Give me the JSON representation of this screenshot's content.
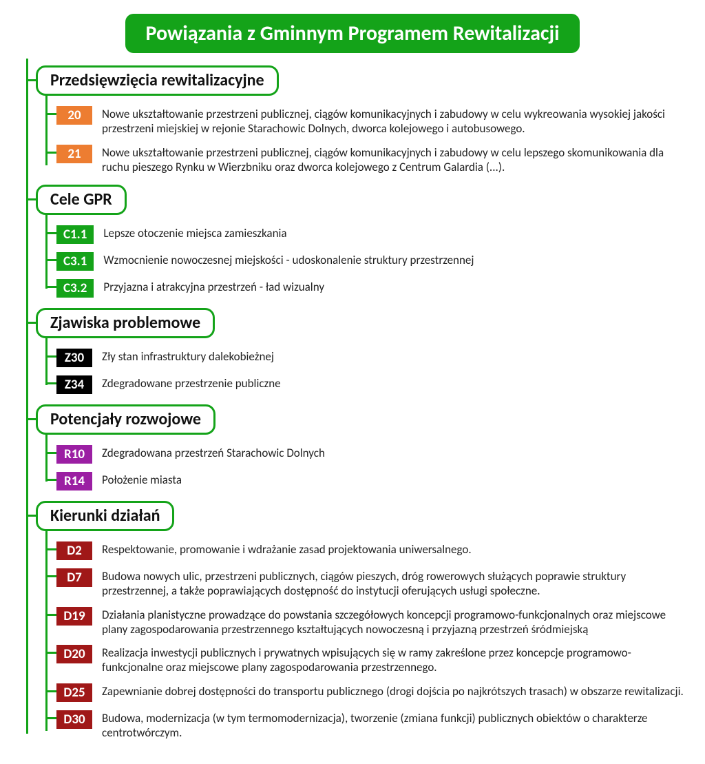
{
  "colors": {
    "brand_green": "#14a319",
    "white": "#ffffff",
    "text": "#222222"
  },
  "title": "Powiązania z Gminnym Programem Rewitalizacji",
  "sections": [
    {
      "header": "Przedsięwzięcia rewitalizacyjne",
      "items": [
        {
          "code": "20",
          "bg": "#ed7d31",
          "text": "Nowe ukształtowanie przestrzeni publicznej, ciągów komunikacyjnych i zabudowy w celu wykreowania wysokiej jakości przestrzeni miejskiej w rejonie Starachowic Dolnych, dworca kolejowego i autobusowego."
        },
        {
          "code": "21",
          "bg": "#ed7d31",
          "text": "Nowe ukształtowanie przestrzeni publicznej, ciągów komunikacyjnych i zabudowy w celu lepszego skomunikowania dla ruchu pieszego Rynku w Wierzbniku oraz dworca kolejowego z Centrum Galardia (...)."
        }
      ]
    },
    {
      "header": "Cele GPR",
      "items": [
        {
          "code": "C1.1",
          "bg": "#14a319",
          "text": "Lepsze otoczenie miejsca zamieszkania"
        },
        {
          "code": "C3.1",
          "bg": "#14a319",
          "text": "Wzmocnienie nowoczesnej miejskości - udoskonalenie struktury przestrzennej"
        },
        {
          "code": "C3.2",
          "bg": "#14a319",
          "text": "Przyjazna i atrakcyjna przestrzeń - ład wizualny"
        }
      ]
    },
    {
      "header": "Zjawiska problemowe",
      "items": [
        {
          "code": "Z30",
          "bg": "#000000",
          "text": "Zły stan infrastruktury dalekobieżnej"
        },
        {
          "code": "Z34",
          "bg": "#000000",
          "text": "Zdegradowane przestrzenie publiczne"
        }
      ]
    },
    {
      "header": "Potencjały rozwojowe",
      "items": [
        {
          "code": "R10",
          "bg": "#9b1fa3",
          "text": "Zdegradowana przestrzeń Starachowic Dolnych"
        },
        {
          "code": "R14",
          "bg": "#9b1fa3",
          "text": "Położenie miasta"
        }
      ]
    },
    {
      "header": "Kierunki działań",
      "items": [
        {
          "code": "D2",
          "bg": "#a01818",
          "text": "Respektowanie, promowanie i wdrażanie zasad projektowania uniwersalnego."
        },
        {
          "code": "D7",
          "bg": "#a01818",
          "text": "Budowa nowych ulic, przestrzeni publicznych, ciągów pieszych, dróg rowerowych służących poprawie struktury przestrzennej, a także poprawiających dostępność do instytucji oferujących usługi społeczne."
        },
        {
          "code": "D19",
          "bg": "#a01818",
          "text": "Działania planistyczne prowadzące do powstania szczegółowych koncepcji programowo-funkcjonalnych oraz miejscowe plany zagospodarowania przestrzennego kształtujących nowoczesną i przyjazną przestrzeń śródmiejską"
        },
        {
          "code": "D20",
          "bg": "#a01818",
          "text": "Realizacja inwestycji publicznych i prywatnych wpisujących się w ramy zakreślone przez koncepcje programowo-funkcjonalne oraz miejscowe plany zagospodarowania przestrzennego."
        },
        {
          "code": "D25",
          "bg": "#a01818",
          "text": "Zapewnianie dobrej dostępności do transportu publicznego (drogi dojścia po najkrótszych trasach) w obszarze rewitalizacji."
        },
        {
          "code": "D30",
          "bg": "#a01818",
          "text": "Budowa, modernizacja (w tym termomodernizacja), tworzenie (zmiana funkcji) publicznych obiektów o charakterze centrotwórczym."
        }
      ]
    }
  ]
}
